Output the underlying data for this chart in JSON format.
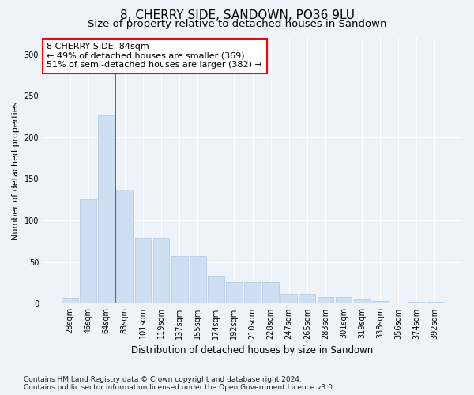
{
  "title": "8, CHERRY SIDE, SANDOWN, PO36 9LU",
  "subtitle": "Size of property relative to detached houses in Sandown",
  "xlabel": "Distribution of detached houses by size in Sandown",
  "ylabel": "Number of detached properties",
  "categories": [
    "28sqm",
    "46sqm",
    "64sqm",
    "83sqm",
    "101sqm",
    "119sqm",
    "137sqm",
    "155sqm",
    "174sqm",
    "192sqm",
    "210sqm",
    "228sqm",
    "247sqm",
    "265sqm",
    "283sqm",
    "301sqm",
    "319sqm",
    "338sqm",
    "356sqm",
    "374sqm",
    "392sqm"
  ],
  "values": [
    7,
    126,
    226,
    137,
    79,
    79,
    57,
    57,
    33,
    26,
    26,
    26,
    12,
    12,
    8,
    8,
    5,
    3,
    0,
    2,
    2
  ],
  "bar_color": "#cfdff2",
  "bar_edge_color": "#aec6e0",
  "annotation_text": "8 CHERRY SIDE: 84sqm\n← 49% of detached houses are smaller (369)\n51% of semi-detached houses are larger (382) →",
  "annotation_box_color": "white",
  "annotation_box_edge_color": "red",
  "red_line_color": "red",
  "ylim": [
    0,
    320
  ],
  "yticks": [
    0,
    50,
    100,
    150,
    200,
    250,
    300
  ],
  "footer_text": "Contains HM Land Registry data © Crown copyright and database right 2024.\nContains public sector information licensed under the Open Government Licence v3.0.",
  "background_color": "#eef2f9",
  "axes_background_color": "#eef2f9",
  "grid_color": "white",
  "title_fontsize": 11,
  "subtitle_fontsize": 9.5,
  "xlabel_fontsize": 8.5,
  "ylabel_fontsize": 8,
  "tick_fontsize": 7,
  "annotation_fontsize": 8,
  "footer_fontsize": 6.5
}
